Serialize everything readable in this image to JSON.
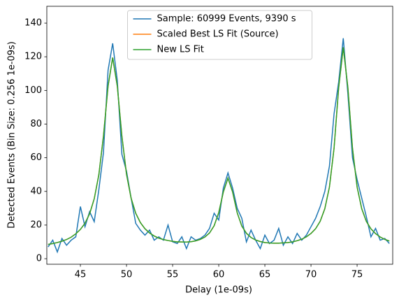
{
  "chart_data": {
    "type": "line",
    "xlabel": "Delay (1e-09s)",
    "ylabel": "Detected Events (Bin Size: 0.256 1e-09s)",
    "x": [
      41.5,
      42,
      42.5,
      43,
      43.5,
      44,
      44.5,
      45,
      45.5,
      46,
      46.5,
      47,
      47.5,
      48,
      48.5,
      49,
      49.5,
      50,
      50.5,
      51,
      51.5,
      52,
      52.5,
      53,
      53.5,
      54,
      54.5,
      55,
      55.5,
      56,
      56.5,
      57,
      57.5,
      58,
      58.5,
      59,
      59.5,
      60,
      60.5,
      61,
      61.5,
      62,
      62.5,
      63,
      63.5,
      64,
      64.5,
      65,
      65.5,
      66,
      66.5,
      67,
      67.5,
      68,
      68.5,
      69,
      69.5,
      70,
      70.5,
      71,
      71.5,
      72,
      72.5,
      73,
      73.5,
      74,
      74.5,
      75,
      75.5,
      76,
      76.5,
      77,
      77.5,
      78,
      78.5
    ],
    "series": [
      {
        "name": "Sample: 60999 Events, 9390 s",
        "color": "#1f77b4",
        "values": [
          7,
          11,
          4,
          12,
          8,
          11,
          13,
          31,
          19,
          28,
          22,
          41,
          63,
          112,
          128,
          106,
          62,
          52,
          36,
          21,
          17,
          14,
          17,
          11,
          13,
          11,
          20,
          10,
          9,
          13,
          6,
          13,
          11,
          12,
          14,
          18,
          27,
          23,
          42,
          51,
          42,
          30,
          24,
          10,
          17,
          11,
          6,
          14,
          9,
          11,
          18,
          8,
          13,
          9,
          15,
          11,
          14,
          19,
          24,
          31,
          40,
          55,
          86,
          105,
          131,
          98,
          60,
          47,
          36,
          25,
          13,
          18,
          11,
          12,
          9
        ]
      },
      {
        "name": "Scaled Best LS Fit (Source)",
        "color": "#ff7f0e",
        "values": [
          8.5,
          9.0,
          9.6,
          10.4,
          11.4,
          12.8,
          14.8,
          17.4,
          21.1,
          26.7,
          35.6,
          49.9,
          72.8,
          102.6,
          119.5,
          102.6,
          72.8,
          50.2,
          35.9,
          27.0,
          21.5,
          17.8,
          15.3,
          13.5,
          12.2,
          11.4,
          10.8,
          10.3,
          10.0,
          9.95,
          9.9,
          10.1,
          10.6,
          11.5,
          12.9,
          15.3,
          19.6,
          27.4,
          39.7,
          47.9,
          39.7,
          27.3,
          19.4,
          15.1,
          12.6,
          11.1,
          10.2,
          9.6,
          9.3,
          9.2,
          9.2,
          9.4,
          9.6,
          10.0,
          10.7,
          11.6,
          13.0,
          15.0,
          17.8,
          22.3,
          29.7,
          42.6,
          65.6,
          101.6,
          125.6,
          101.6,
          65.6,
          42.6,
          29.7,
          22.2,
          17.7,
          14.9,
          12.9,
          11.5,
          10.5
        ]
      },
      {
        "name": "New LS Fit",
        "color": "#2ca02c",
        "values": [
          8.5,
          9.0,
          9.6,
          10.4,
          11.4,
          12.8,
          14.8,
          17.4,
          21.1,
          26.7,
          35.6,
          49.9,
          72.8,
          102.6,
          119.5,
          102.6,
          72.8,
          50.2,
          35.9,
          27.0,
          21.5,
          17.8,
          15.3,
          13.5,
          12.2,
          11.4,
          10.8,
          10.3,
          10.0,
          9.95,
          9.9,
          10.1,
          10.6,
          11.5,
          12.9,
          15.3,
          19.6,
          27.4,
          39.7,
          47.9,
          39.7,
          27.3,
          19.4,
          15.1,
          12.6,
          11.1,
          10.2,
          9.6,
          9.3,
          9.2,
          9.2,
          9.4,
          9.6,
          10.0,
          10.7,
          11.6,
          13.0,
          15.0,
          17.8,
          22.3,
          29.7,
          42.6,
          65.6,
          101.6,
          125.6,
          101.6,
          65.6,
          42.6,
          29.7,
          22.2,
          17.7,
          14.9,
          12.9,
          11.5,
          10.5
        ]
      }
    ],
    "xlim": [
      41.36,
      78.86
    ],
    "xticks": [
      45,
      50,
      55,
      60,
      65,
      70,
      75
    ],
    "ylim": [
      -3.3,
      150
    ],
    "yticks": [
      0,
      20,
      40,
      60,
      80,
      100,
      120,
      140
    ],
    "legend": "upper center"
  }
}
